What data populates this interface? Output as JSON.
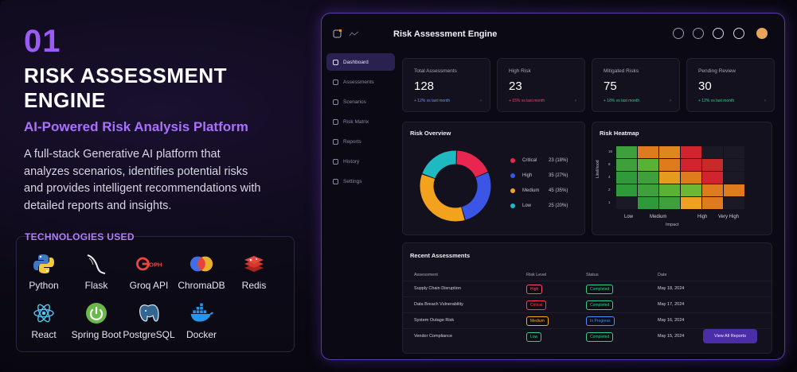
{
  "intro": {
    "number": "01",
    "title": "RISK ASSESSMENT ENGINE",
    "subtitle": "AI-Powered Risk Analysis Platform",
    "description": "A full-stack Generative AI platform that analyzes scenarios, identifies potential risks and provides intelligent recommendations with detailed reports and insights."
  },
  "technologies": {
    "label": "TECHNOLOGIES USED",
    "items": [
      {
        "name": "Python",
        "icon": "python-icon"
      },
      {
        "name": "Flask",
        "icon": "flask-icon"
      },
      {
        "name": "Groq API",
        "icon": "groq-icon"
      },
      {
        "name": "ChromaDB",
        "icon": "chromadb-icon"
      },
      {
        "name": "Redis",
        "icon": "redis-icon"
      },
      {
        "name": "React",
        "icon": "react-icon"
      },
      {
        "name": "Spring Boot",
        "icon": "spring-boot-icon"
      },
      {
        "name": "PostgreSQL",
        "icon": "postgresql-icon"
      },
      {
        "name": "Docker",
        "icon": "docker-icon"
      }
    ]
  },
  "dashboard": {
    "app_title": "Risk Assessment Engine",
    "sidebar": [
      {
        "label": "Dashboard",
        "active": true
      },
      {
        "label": "Assessments",
        "active": false
      },
      {
        "label": "Scenarios",
        "active": false
      },
      {
        "label": "Risk Matrix",
        "active": false
      },
      {
        "label": "Reports",
        "active": false
      },
      {
        "label": "History",
        "active": false
      },
      {
        "label": "Settings",
        "active": false
      }
    ],
    "stats": [
      {
        "label": "Total Assessments",
        "value": "128",
        "sub": "+ 12% vs last month",
        "color": "#7b8cff"
      },
      {
        "label": "High Risk",
        "value": "23",
        "sub": "+ 15% vs last month",
        "color": "#ff3d6e"
      },
      {
        "label": "Mitigated Risks",
        "value": "75",
        "sub": "+ 18% vs last month",
        "color": "#2fd08a"
      },
      {
        "label": "Pending Review",
        "value": "30",
        "sub": "+ 12% vs last month",
        "color": "#2fd08a"
      }
    ],
    "risk_overview": {
      "title": "Risk Overview",
      "segments": [
        {
          "name": "Critical",
          "value": "23 (18%)",
          "pct": 18,
          "color": "#e8264f"
        },
        {
          "name": "High",
          "value": "35 (27%)",
          "pct": 27,
          "color": "#3b55e6"
        },
        {
          "name": "Medium",
          "value": "45 (35%)",
          "pct": 35,
          "color": "#f2a21d"
        },
        {
          "name": "Low",
          "value": "25 (20%)",
          "pct": 20,
          "color": "#1fb9c2"
        }
      ]
    },
    "heatmap": {
      "title": "Risk Heatmap",
      "y_label": "Likelihood",
      "x_label": "Impact",
      "x_ticks": [
        "Low",
        "Medium",
        "High",
        "Very High"
      ],
      "y_ticks": [
        "16",
        "8",
        "4",
        "2",
        "1"
      ],
      "rows": [
        [
          "#3ea03a",
          "#e07a1e",
          "#e0861f",
          "#d0252e",
          "#1a1925",
          "#1a1925"
        ],
        [
          "#3ea03a",
          "#5ab232",
          "#e07a1e",
          "#d0252e",
          "#c82a2a",
          "#1a1925"
        ],
        [
          "#2f9a3a",
          "#3ea03a",
          "#e59b20",
          "#e07a1e",
          "#d0252e",
          "#1a1925"
        ],
        [
          "#2f9a3a",
          "#3ea03a",
          "#5ab232",
          "#6cb832",
          "#e07a1e",
          "#e07a1e"
        ],
        [
          "#1a1925",
          "#2f9a3a",
          "#3ea03a",
          "#f0a020",
          "#e07a1e",
          "#1a1925"
        ]
      ]
    },
    "recent": {
      "title": "Recent Assessments",
      "headers": [
        "Assessment",
        "Risk Level",
        "Status",
        "Date"
      ],
      "rows": [
        {
          "name": "Supply Chain Disruption",
          "level": "High",
          "level_color": "#ff4f6a",
          "status": "Completed",
          "status_color": "#2fd08a",
          "date": "May 18, 2024"
        },
        {
          "name": "Data Breach Vulnerability",
          "level": "Critical",
          "level_color": "#ff3b4f",
          "status": "Completed",
          "status_color": "#2fd08a",
          "date": "May 17, 2024"
        },
        {
          "name": "System Outage Risk",
          "level": "Medium",
          "level_color": "#f2b21d",
          "status": "In Progress",
          "status_color": "#4f8cff",
          "date": "May 16, 2024"
        },
        {
          "name": "Vendor Compliance",
          "level": "Low",
          "level_color": "#2fd08a",
          "status": "Completed",
          "status_color": "#2fd08a",
          "date": "May 15, 2024"
        }
      ],
      "button": "View All Reports"
    }
  }
}
